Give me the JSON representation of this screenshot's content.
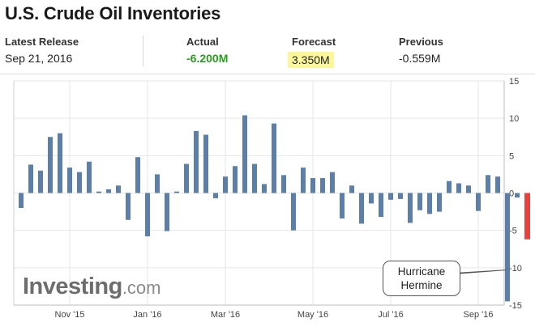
{
  "title": "U.S. Crude Oil Inventories",
  "stats": {
    "latest_release_label": "Latest Release",
    "latest_release_date": "Sep 21, 2016",
    "actual_label": "Actual",
    "actual_value": "-6.200M",
    "forecast_label": "Forecast",
    "forecast_value": "3.350M",
    "previous_label": "Previous",
    "previous_value": "-0.559M"
  },
  "watermark": {
    "brand": "Investing",
    "suffix": ".com"
  },
  "annotation": {
    "line1": "Hurricane",
    "line2": "Hermine"
  },
  "colors": {
    "bar": "#5b7fa8",
    "highlight_bar": "#e8423f",
    "actual": "#2a9d1f",
    "forecast_bg": "#fbf79a"
  },
  "chart_data": {
    "type": "bar",
    "title": "",
    "xlabel": "",
    "ylabel": "",
    "ylim": [
      -15,
      15
    ],
    "y_ticks": [
      15,
      10,
      5,
      0,
      -5,
      -10,
      -15
    ],
    "x_tick_labels": [
      "Nov '15",
      "Jan '16",
      "Mar '16",
      "May '16",
      "Jul '16",
      "Sep '16"
    ],
    "x_tick_bar_index": [
      5,
      13,
      21,
      30,
      38,
      47
    ],
    "grid": true,
    "values": [
      -2.0,
      3.8,
      3.0,
      7.5,
      8.0,
      3.4,
      2.8,
      4.2,
      0.2,
      0.5,
      1.0,
      -3.6,
      4.8,
      -5.8,
      2.5,
      -5.1,
      0.2,
      3.9,
      8.3,
      7.8,
      -0.7,
      2.2,
      3.6,
      10.4,
      3.9,
      1.2,
      9.3,
      2.4,
      -5.0,
      3.4,
      2.0,
      2.0,
      2.8,
      -3.4,
      1.0,
      -4.1,
      -1.4,
      -3.2,
      -0.9,
      -0.8,
      -4.0,
      -2.3,
      -2.8,
      -2.5,
      1.6,
      1.3,
      1.0,
      -2.4,
      2.4,
      2.2,
      -14.5,
      -0.6
    ],
    "highlight_value": -6.2
  }
}
